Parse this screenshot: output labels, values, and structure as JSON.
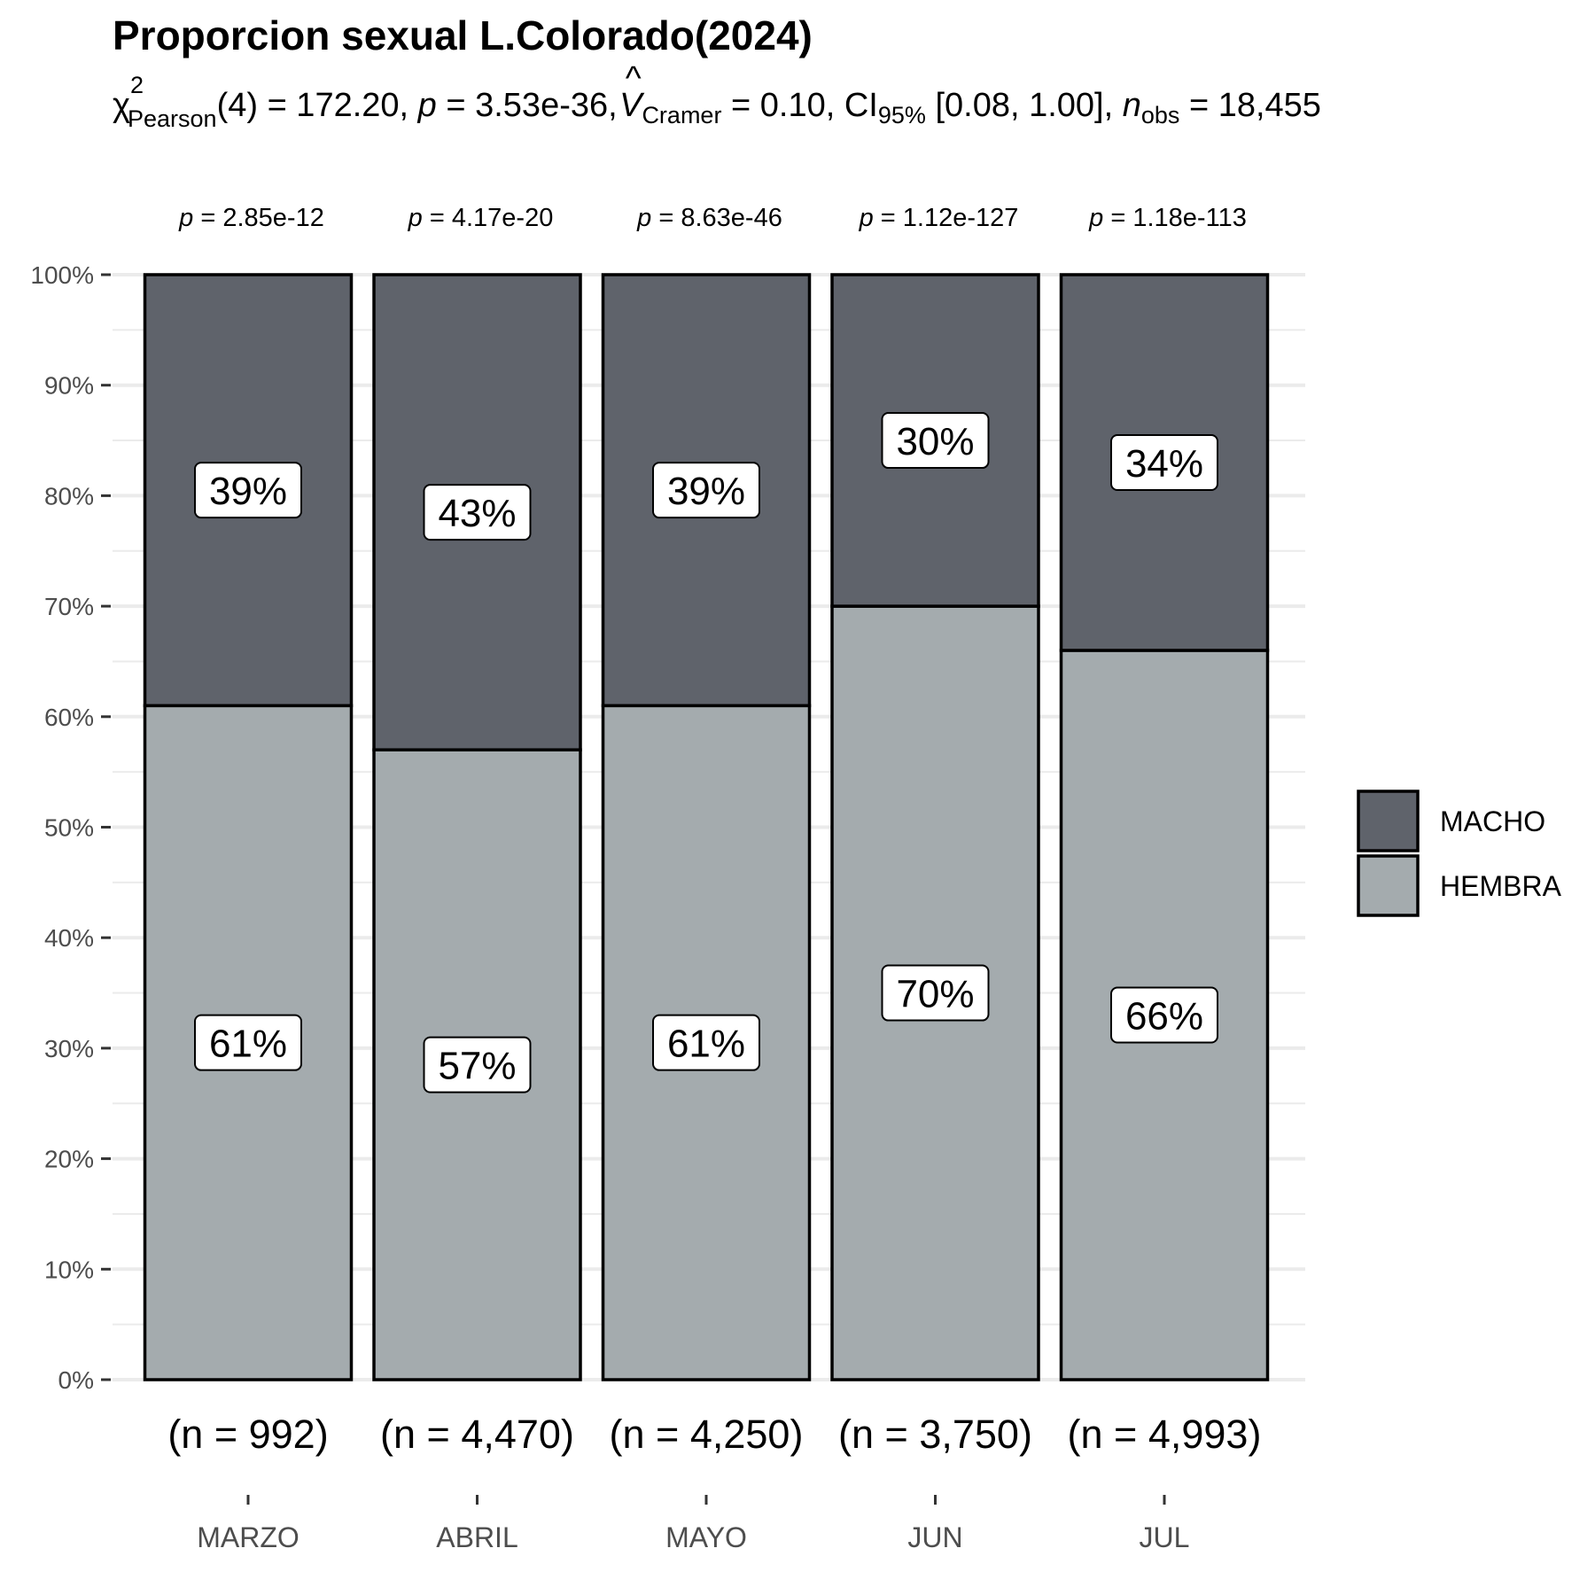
{
  "chart_data": {
    "type": "bar",
    "stacked": true,
    "percent": true,
    "title": "Proporcion sexual L.Colorado(2024)",
    "subtitle": {
      "chi": "χ",
      "chi_sup": "2",
      "chi_sub": "Pearson",
      "df": "(4) = 172.20, ",
      "p_sym": "p",
      "p_val": " = 3.53e-36, ",
      "v_hat": "^",
      "v_sym": "V",
      "v_sub": "Cramer",
      "v_val": " = 0.10, CI",
      "ci_sub": "95%",
      "ci_val": " [0.08, 1.00], ",
      "n_sym": "n",
      "n_sub": "obs",
      "n_val": " = 18,455"
    },
    "categories": [
      "MARZO",
      "ABRIL",
      "MAYO",
      "JUN",
      "JUL"
    ],
    "series": [
      {
        "name": "HEMBRA",
        "values": [
          61,
          57,
          61,
          70,
          66
        ],
        "labels": [
          "61%",
          "57%",
          "61%",
          "70%",
          "66%"
        ],
        "color": "#a4abae"
      },
      {
        "name": "MACHO",
        "values": [
          39,
          43,
          39,
          30,
          34
        ],
        "labels": [
          "39%",
          "43%",
          "39%",
          "30%",
          "34%"
        ],
        "color": "#5f636b"
      }
    ],
    "p_sym": "p",
    "p_values": [
      " = 2.85e-12",
      " = 4.17e-20",
      " = 8.63e-46",
      " = 1.12e-127",
      " = 1.18e-113"
    ],
    "n_labels": [
      "(n = 992)",
      "(n = 4,470)",
      "(n = 4,250)",
      "(n = 3,750)",
      "(n = 4,993)"
    ],
    "ylim": [
      0,
      100
    ],
    "yticks": [
      "0%",
      "10%",
      "20%",
      "30%",
      "40%",
      "50%",
      "60%",
      "70%",
      "80%",
      "90%",
      "100%"
    ],
    "legend": {
      "position": "right",
      "entries": [
        "MACHO",
        "HEMBRA"
      ]
    },
    "grid": true
  }
}
